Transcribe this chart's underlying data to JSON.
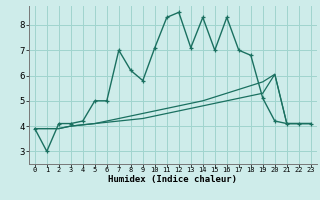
{
  "xlabel": "Humidex (Indice chaleur)",
  "xlim": [
    -0.5,
    23.5
  ],
  "ylim": [
    2.5,
    8.75
  ],
  "bg_color": "#ceecea",
  "grid_color": "#a0d4ce",
  "line_color": "#1a7060",
  "xtick_labels": [
    "0",
    "1",
    "2",
    "3",
    "4",
    "5",
    "6",
    "7",
    "8",
    "9",
    "10",
    "11",
    "12",
    "13",
    "14",
    "15",
    "16",
    "17",
    "18",
    "19",
    "20",
    "21",
    "22",
    "23"
  ],
  "ytick_labels": [
    "3",
    "4",
    "5",
    "6",
    "7",
    "8"
  ],
  "ytick_vals": [
    3,
    4,
    5,
    6,
    7,
    8
  ],
  "lines": [
    {
      "x": [
        0,
        1,
        2,
        3,
        4,
        5,
        6,
        7,
        8,
        9,
        10,
        11,
        12,
        13,
        14,
        15,
        16,
        17,
        18,
        19,
        20,
        21,
        22,
        23
      ],
      "y": [
        3.9,
        3.0,
        4.1,
        4.1,
        4.2,
        5.0,
        5.0,
        7.0,
        6.2,
        5.8,
        7.1,
        8.3,
        8.5,
        7.1,
        8.3,
        7.0,
        8.3,
        7.0,
        6.8,
        5.1,
        4.2,
        4.1,
        4.1,
        4.1
      ],
      "marker": true,
      "lw": 1.0
    },
    {
      "x": [
        0,
        1,
        2,
        3,
        4,
        5,
        6,
        7,
        8,
        9,
        10,
        11,
        12,
        13,
        14,
        15,
        16,
        17,
        18,
        19,
        20,
        21,
        22,
        23
      ],
      "y": [
        3.9,
        3.9,
        3.9,
        4.0,
        4.05,
        4.1,
        4.15,
        4.2,
        4.25,
        4.3,
        4.4,
        4.5,
        4.6,
        4.7,
        4.8,
        4.9,
        5.0,
        5.1,
        5.2,
        5.3,
        6.05,
        4.1,
        4.1,
        4.1
      ],
      "marker": false,
      "lw": 0.9
    },
    {
      "x": [
        0,
        1,
        2,
        3,
        4,
        5,
        6,
        7,
        8,
        9,
        10,
        11,
        12,
        13,
        14,
        15,
        16,
        17,
        18,
        19,
        20,
        21,
        22,
        23
      ],
      "y": [
        3.9,
        3.9,
        3.9,
        4.0,
        4.05,
        4.1,
        4.2,
        4.3,
        4.4,
        4.5,
        4.6,
        4.7,
        4.8,
        4.9,
        5.0,
        5.15,
        5.3,
        5.45,
        5.6,
        5.75,
        6.05,
        4.1,
        4.1,
        4.1
      ],
      "marker": false,
      "lw": 0.9
    }
  ]
}
